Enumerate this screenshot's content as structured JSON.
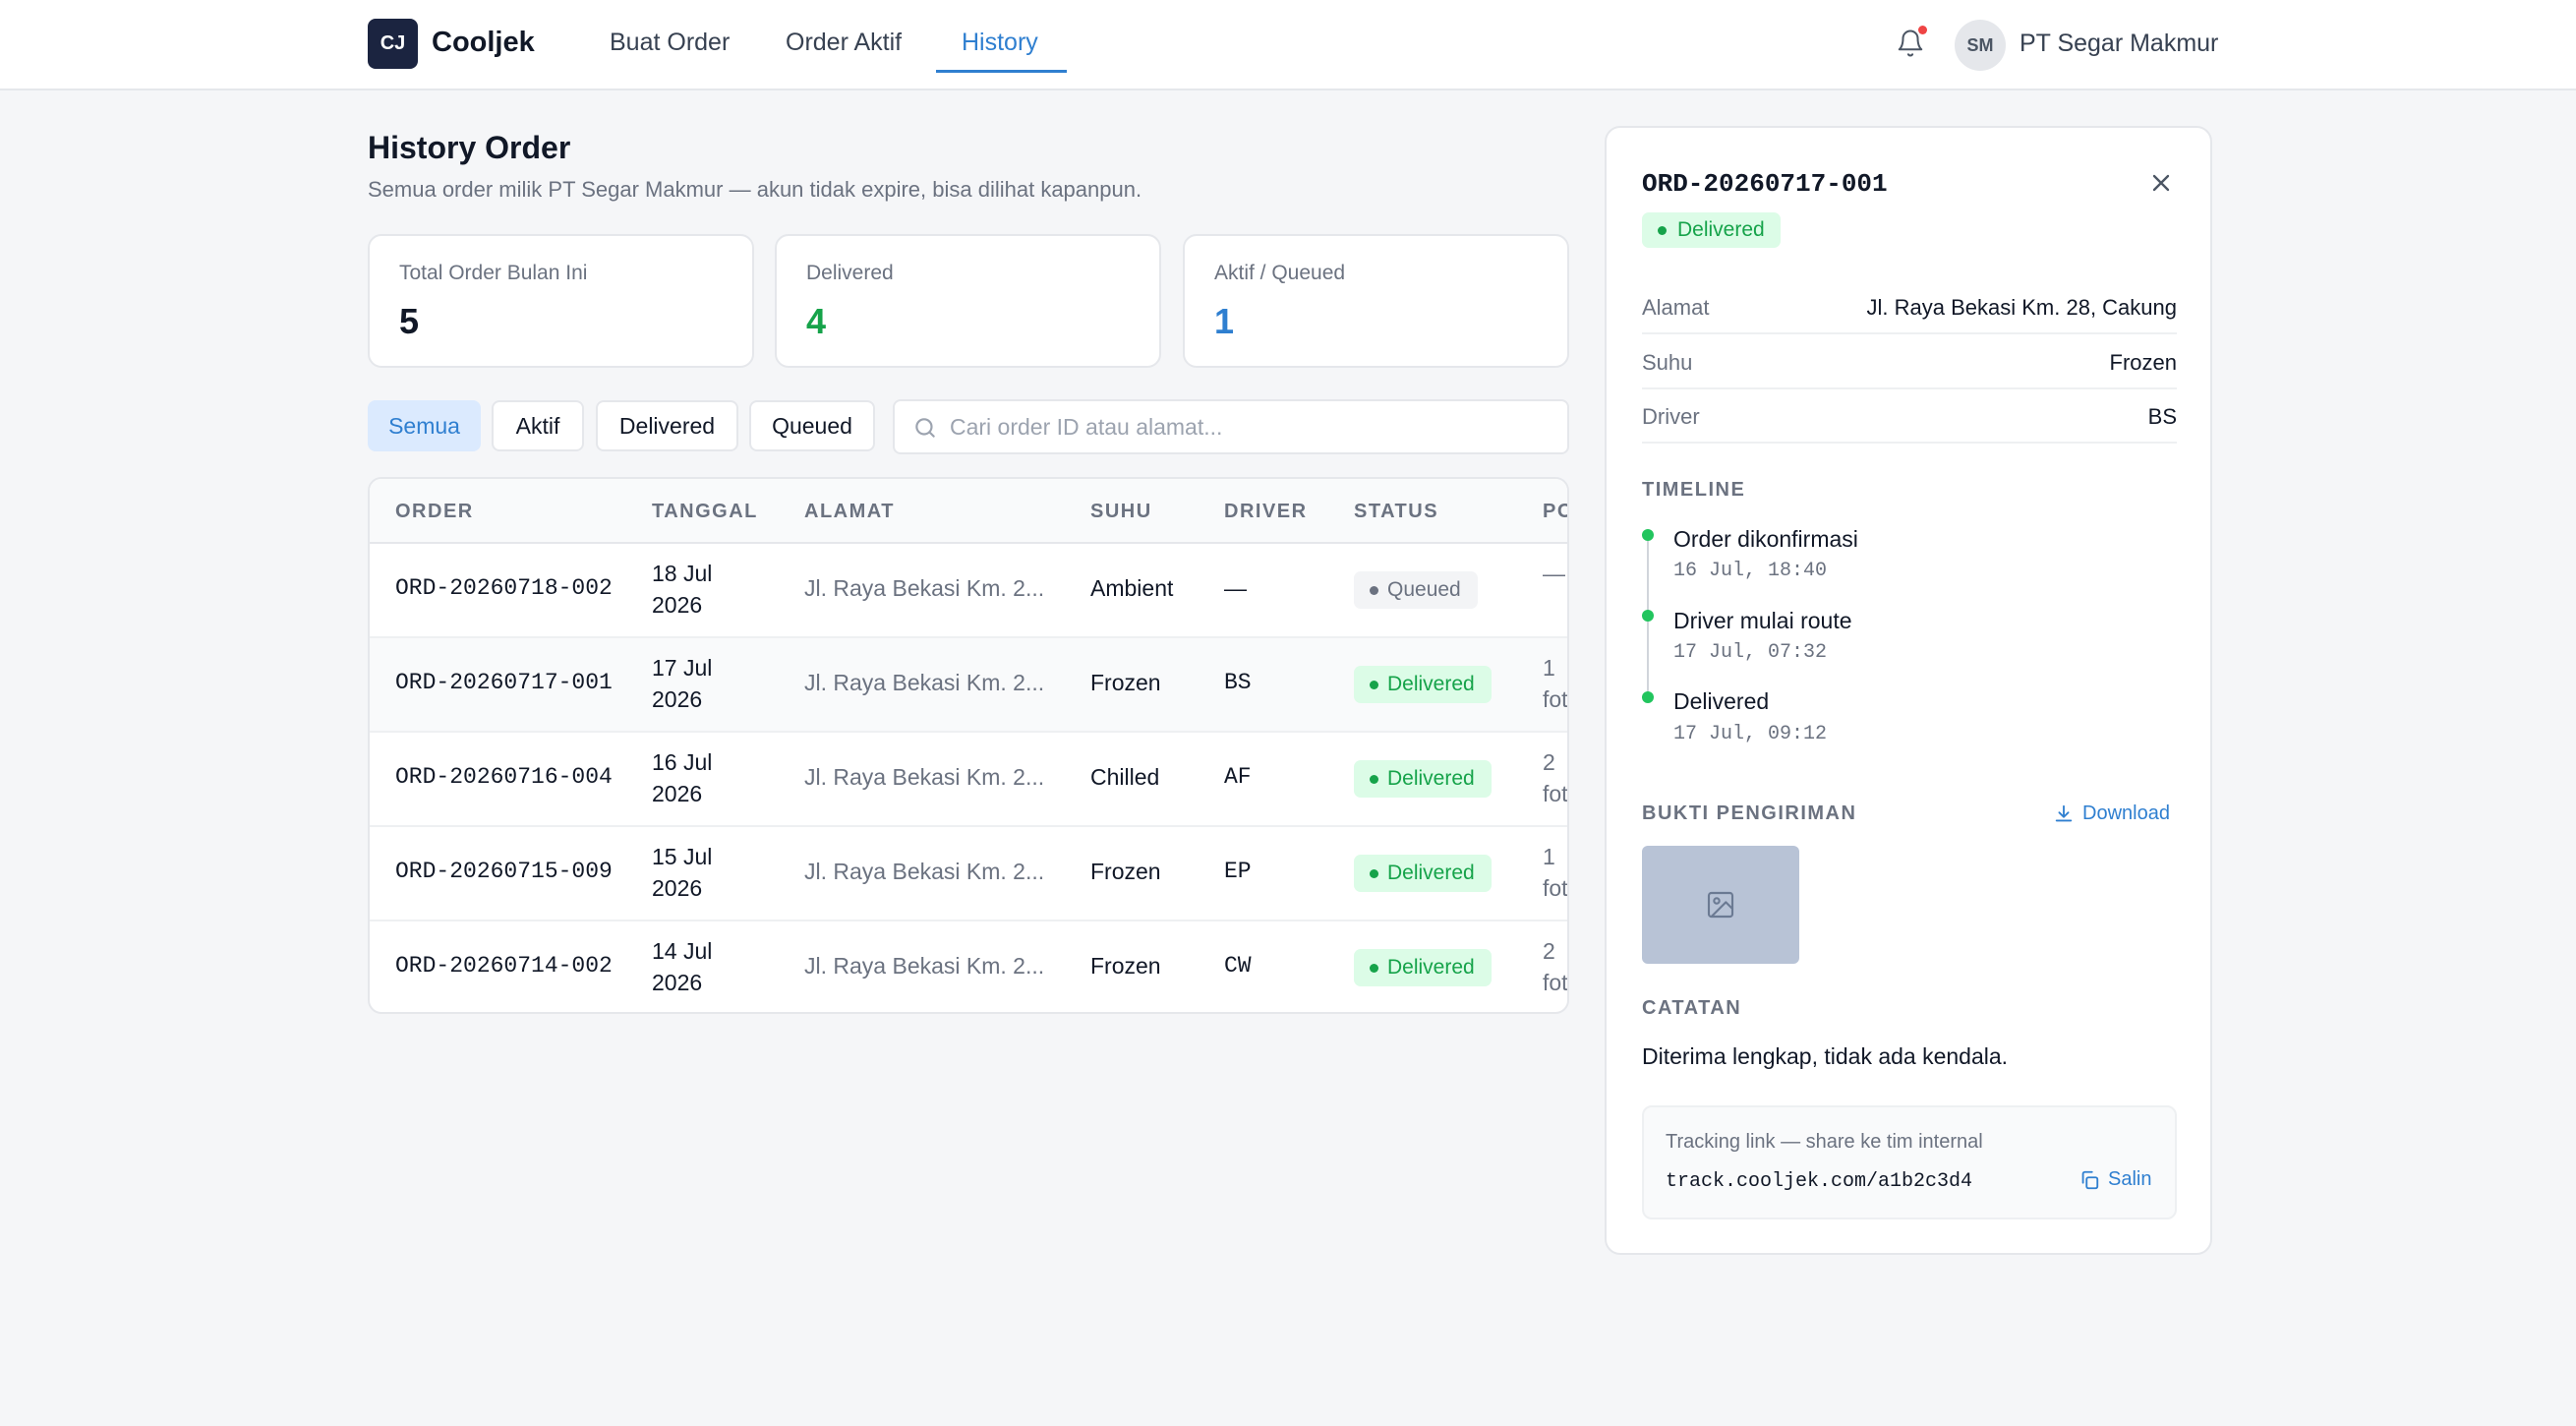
{
  "nav": {
    "logo_badge": "CJ",
    "logo_name": "Cooljek",
    "tabs": [
      "Buat Order",
      "Order Aktif",
      "History"
    ],
    "active_tab": "History",
    "user_initials": "SM",
    "user_name": "PT Segar Makmur"
  },
  "header": {
    "title": "History Order",
    "subtitle": "Semua order milik PT Segar Makmur — akun tidak expire, bisa dilihat kapanpun."
  },
  "stats": [
    {
      "label": "Total Order Bulan Ini",
      "value": "5",
      "color": "#111827"
    },
    {
      "label": "Delivered",
      "value": "4",
      "color": "#16a34a"
    },
    {
      "label": "Aktif / Queued",
      "value": "1",
      "color": "#2f7fd0"
    }
  ],
  "filters": {
    "chips": [
      "Semua",
      "Aktif",
      "Delivered",
      "Queued"
    ],
    "active": "Semua",
    "search_placeholder": "Cari order ID atau alamat..."
  },
  "table": {
    "columns": [
      "ORDER",
      "TANGGAL",
      "ALAMAT",
      "SUHU",
      "DRIVER",
      "STATUS",
      "PO"
    ],
    "rows": [
      {
        "order": "ORD-20260718-002",
        "date_1": "18 Jul",
        "date_2": "2026",
        "address": "Jl. Raya Bekasi Km. 2...",
        "temp": "Ambient",
        "driver": "—",
        "status": "Queued",
        "pod_1": "—",
        "pod_2": ""
      },
      {
        "order": "ORD-20260717-001",
        "date_1": "17 Jul",
        "date_2": "2026",
        "address": "Jl. Raya Bekasi Km. 2...",
        "temp": "Frozen",
        "driver": "BS",
        "status": "Delivered",
        "pod_1": "1",
        "pod_2": "fot"
      },
      {
        "order": "ORD-20260716-004",
        "date_1": "16 Jul",
        "date_2": "2026",
        "address": "Jl. Raya Bekasi Km. 2...",
        "temp": "Chilled",
        "driver": "AF",
        "status": "Delivered",
        "pod_1": "2",
        "pod_2": "fot"
      },
      {
        "order": "ORD-20260715-009",
        "date_1": "15 Jul",
        "date_2": "2026",
        "address": "Jl. Raya Bekasi Km. 2...",
        "temp": "Frozen",
        "driver": "EP",
        "status": "Delivered",
        "pod_1": "1",
        "pod_2": "fot"
      },
      {
        "order": "ORD-20260714-002",
        "date_1": "14 Jul",
        "date_2": "2026",
        "address": "Jl. Raya Bekasi Km. 2...",
        "temp": "Frozen",
        "driver": "CW",
        "status": "Delivered",
        "pod_1": "2",
        "pod_2": "fot"
      }
    ]
  },
  "detail": {
    "order_id": "ORD-20260717-001",
    "status": "Delivered",
    "fields": [
      {
        "label": "Alamat",
        "value": "Jl. Raya Bekasi Km. 28, Cakung"
      },
      {
        "label": "Suhu",
        "value": "Frozen"
      },
      {
        "label": "Driver",
        "value": "BS"
      }
    ],
    "timeline_label": "TIMELINE",
    "timeline": [
      {
        "title": "Order dikonfirmasi",
        "time": "16 Jul, 18:40"
      },
      {
        "title": "Driver mulai route",
        "time": "17 Jul, 07:32"
      },
      {
        "title": "Delivered",
        "time": "17 Jul, 09:12"
      }
    ],
    "proof_label": "BUKTI PENGIRIMAN",
    "download_label": "Download",
    "notes_label": "CATATAN",
    "notes": "Diterima lengkap, tidak ada kendala.",
    "tracking_label": "Tracking link — share ke tim internal",
    "tracking_url": "track.cooljek.com/a1b2c3d4",
    "copy_label": "Salin"
  },
  "colors": {
    "accent": "#2f7fd0",
    "delivered": "#16a34a",
    "queued": "#6b7280",
    "logo": "#1b2440"
  }
}
